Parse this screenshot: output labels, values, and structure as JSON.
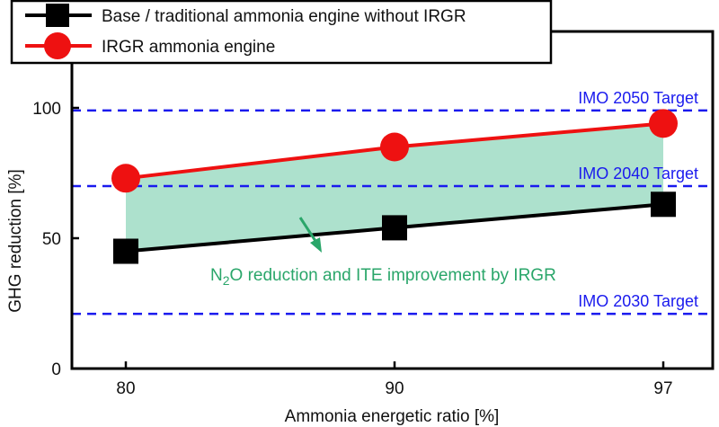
{
  "chart_data": {
    "type": "line",
    "x": [
      80,
      90,
      97
    ],
    "x_tick_labels": [
      "80",
      "90",
      "97"
    ],
    "xlabel": "Ammonia energetic ratio [%]",
    "ylabel": "GHG reduction [%]",
    "ylim": [
      0,
      100
    ],
    "y_ticks": [
      0,
      50,
      100
    ],
    "y_tick_labels": [
      "0",
      "50",
      "100"
    ],
    "grid": false,
    "legend_position": "top-left",
    "series": [
      {
        "name": "Base / traditional ammonia engine without IRGR",
        "values": [
          45,
          54,
          63
        ],
        "color": "#000000",
        "marker": "square"
      },
      {
        "name": "IRGR ammonia engine",
        "values": [
          73,
          85,
          94
        ],
        "color": "#ee1111",
        "marker": "circle"
      }
    ],
    "shaded_region": {
      "between": [
        "Base / traditional ammonia engine without IRGR",
        "IRGR ammonia engine"
      ],
      "color": "#9fdcc4"
    },
    "reference_lines": [
      {
        "label": "IMO 2050 Target",
        "y": 99,
        "color": "#1a1aee"
      },
      {
        "label": "IMO 2040 Target",
        "y": 70,
        "color": "#1a1aee"
      },
      {
        "label": "IMO 2030 Target",
        "y": 21,
        "color": "#1a1aee"
      }
    ],
    "annotation": {
      "text_main": "N",
      "text_sub": "2",
      "text_rest": "O reduction and ITE improvement by IRGR",
      "color": "#2aa66a"
    }
  }
}
